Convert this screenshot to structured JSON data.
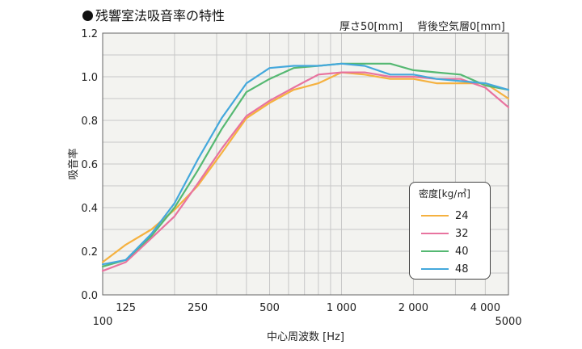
{
  "header": {
    "title": "残響室法吸音率の特性",
    "condition_thickness": "厚さ50[mm]",
    "condition_air": "背後空気層0[mm]"
  },
  "legend": {
    "title": "密度[kg/㎥]"
  },
  "chart_data": {
    "type": "line",
    "title": "残響室法吸音率の特性",
    "xlabel": "中心周波数 [Hz]",
    "ylabel": "吸音率",
    "xscale": "log",
    "xlim": [
      100,
      5000
    ],
    "ylim": [
      0,
      1.2
    ],
    "grid": true,
    "legend_position": "lower-right",
    "x_ticks_upper": [
      "125",
      "250",
      "500",
      "1 000",
      "2 000",
      "4 000"
    ],
    "x_ticks_lower": [
      "100",
      "5000"
    ],
    "y_ticks": [
      "0.0",
      "0.2",
      "0.4",
      "0.6",
      "0.8",
      "1.0",
      "1.2"
    ],
    "x": [
      100,
      125,
      160,
      200,
      250,
      315,
      400,
      500,
      630,
      800,
      1000,
      1250,
      1600,
      2000,
      2500,
      3150,
      4000,
      5000
    ],
    "series": [
      {
        "name": "24",
        "color": "#f5b13f",
        "values": [
          0.15,
          0.23,
          0.3,
          0.39,
          0.5,
          0.65,
          0.81,
          0.88,
          0.94,
          0.97,
          1.02,
          1.01,
          0.99,
          0.99,
          0.97,
          0.97,
          0.97,
          0.9
        ]
      },
      {
        "name": "32",
        "color": "#e8739f",
        "values": [
          0.11,
          0.15,
          0.26,
          0.36,
          0.51,
          0.67,
          0.82,
          0.89,
          0.95,
          1.01,
          1.02,
          1.02,
          1.0,
          1.0,
          0.99,
          0.99,
          0.95,
          0.86
        ]
      },
      {
        "name": "40",
        "color": "#55b872",
        "values": [
          0.13,
          0.16,
          0.27,
          0.4,
          0.57,
          0.76,
          0.93,
          0.99,
          1.04,
          1.05,
          1.06,
          1.06,
          1.06,
          1.03,
          1.02,
          1.01,
          0.96,
          0.94
        ]
      },
      {
        "name": "48",
        "color": "#44a8dc",
        "values": [
          0.14,
          0.16,
          0.28,
          0.42,
          0.62,
          0.81,
          0.97,
          1.04,
          1.05,
          1.05,
          1.06,
          1.05,
          1.01,
          1.01,
          0.99,
          0.98,
          0.97,
          0.94
        ]
      }
    ]
  }
}
